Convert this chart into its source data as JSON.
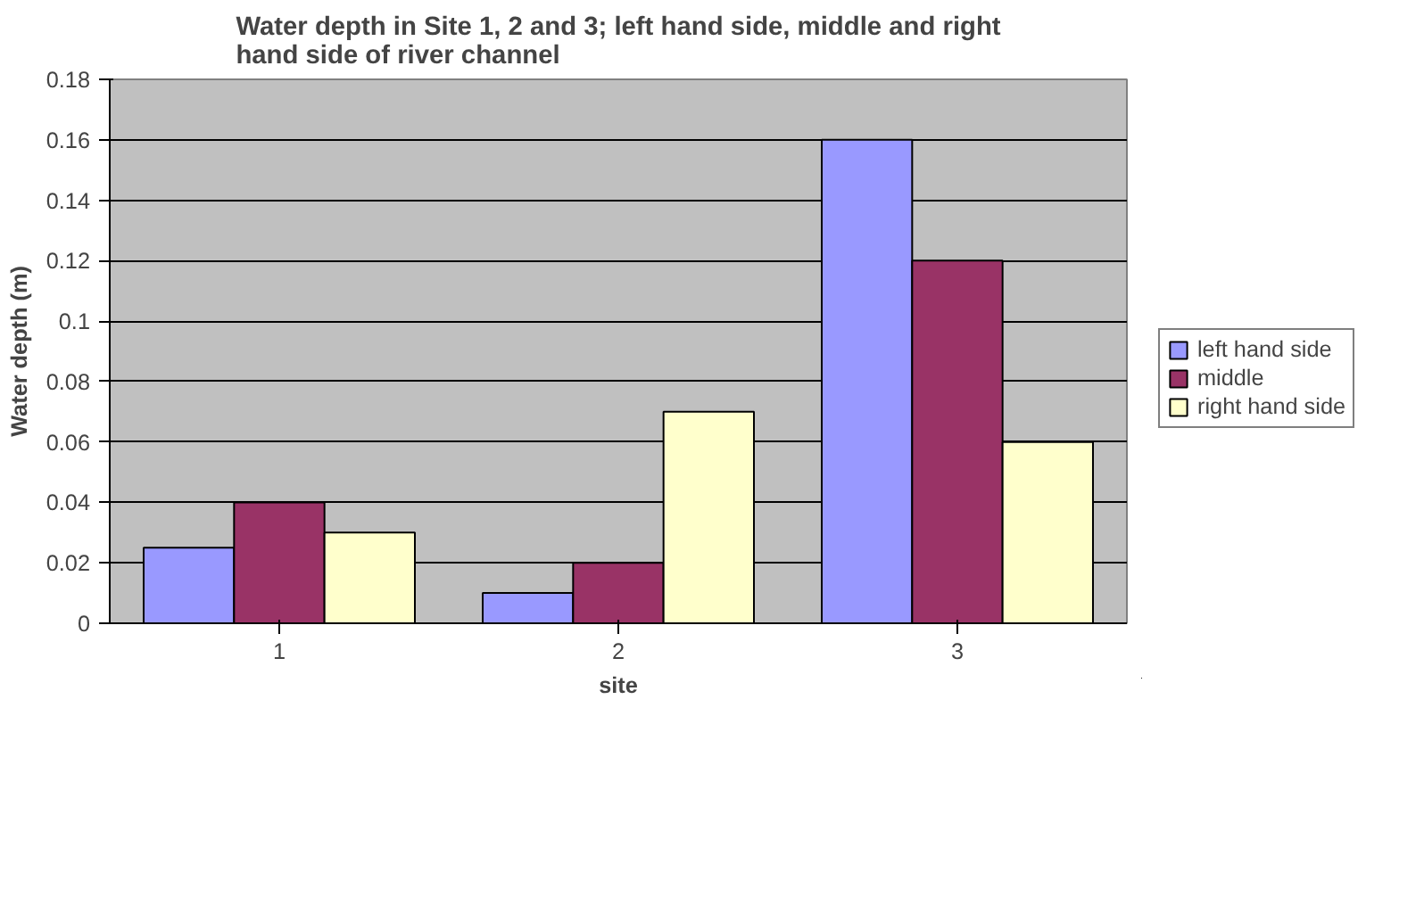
{
  "chart_data": {
    "type": "bar",
    "title": "Water depth in Site 1, 2 and 3; left hand side, middle and right hand side of river channel",
    "xlabel": "site",
    "ylabel": "Water depth (m)",
    "categories": [
      "1",
      "2",
      "3"
    ],
    "series": [
      {
        "name": "left hand side",
        "color": "#9999ff",
        "values": [
          0.025,
          0.01,
          0.16
        ]
      },
      {
        "name": "middle",
        "color": "#993366",
        "values": [
          0.04,
          0.02,
          0.12
        ]
      },
      {
        "name": "right hand side",
        "color": "#ffffcc",
        "values": [
          0.03,
          0.07,
          0.06
        ]
      }
    ],
    "ylim": [
      0,
      0.18
    ],
    "yticks": [
      0,
      0.02,
      0.04,
      0.06,
      0.08,
      0.1,
      0.12,
      0.14,
      0.16,
      0.18
    ],
    "grid": "y",
    "legend": "right"
  }
}
